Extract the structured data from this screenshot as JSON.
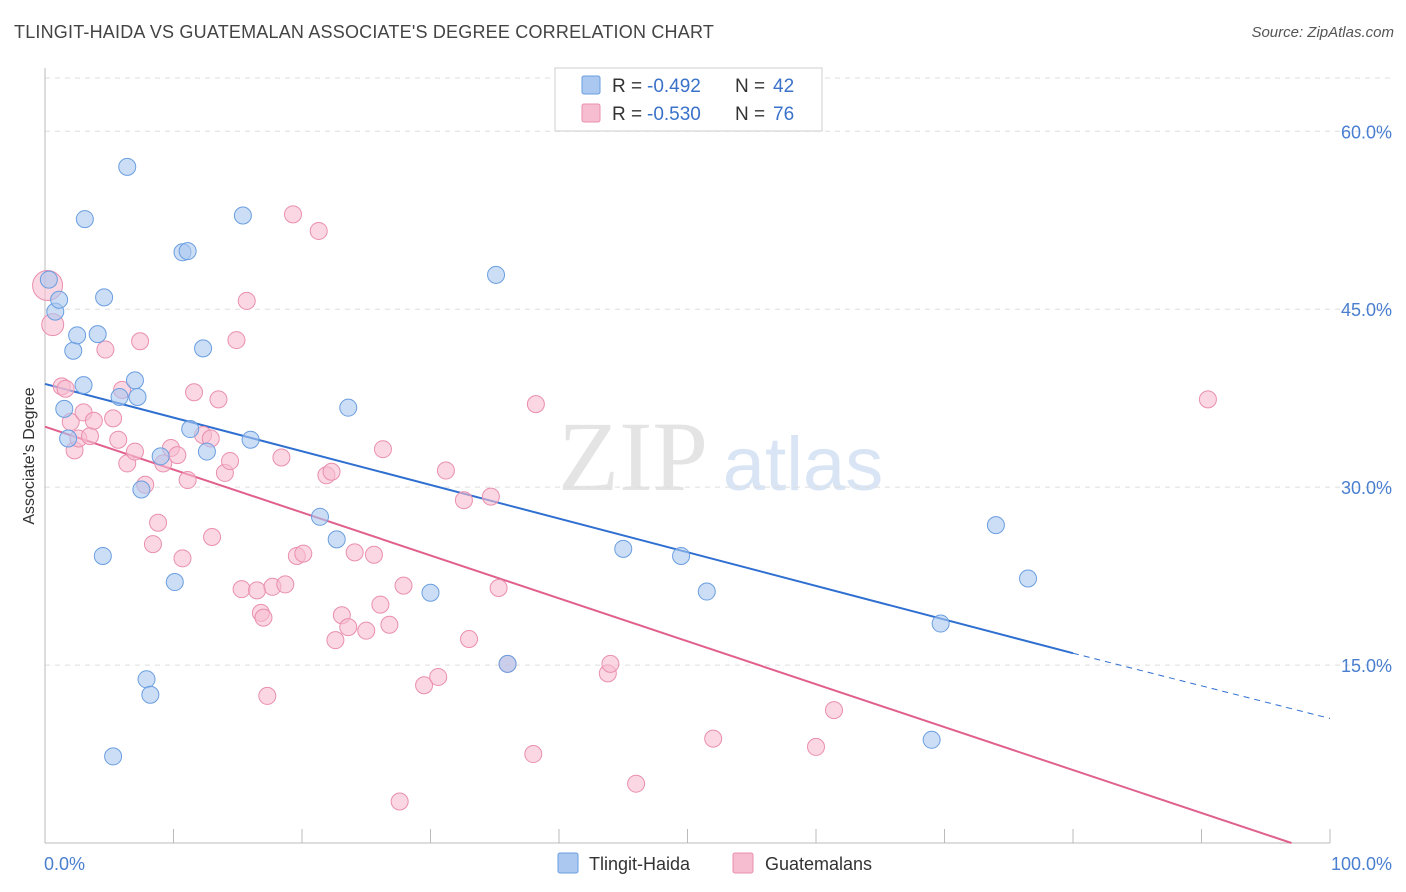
{
  "header": {
    "title": "TLINGIT-HAIDA VS GUATEMALAN ASSOCIATE'S DEGREE CORRELATION CHART",
    "source": "Source: ZipAtlas.com"
  },
  "watermark": {
    "zip": "ZIP",
    "atlas": "atlas"
  },
  "legend": {
    "r_label": "R =",
    "n_label": "N =",
    "rows": [
      {
        "r": "-0.492",
        "n": "42"
      },
      {
        "r": "-0.530",
        "n": "76"
      }
    ]
  },
  "colors": {
    "blue_fill": "#aac8f0",
    "blue_stroke": "#6a9ee0",
    "blue_line": "#2f6fd0",
    "pink_fill": "#f6bcd0",
    "pink_stroke": "#ea8fae",
    "pink_line": "#e0608e",
    "tick_text": "#4a7fd0",
    "grid": "#dddddd"
  },
  "chart_data": {
    "type": "scatter",
    "title": "TLINGIT-HAIDA VS GUATEMALAN ASSOCIATE'S DEGREE CORRELATION CHART",
    "xlabel": "",
    "ylabel": "Associate's Degree",
    "xlim": [
      0,
      100
    ],
    "ylim": [
      0,
      65
    ],
    "x_tick_labels": [
      "0.0%",
      "100.0%"
    ],
    "y_ticks": [
      15,
      30,
      45,
      60
    ],
    "y_tick_labels": [
      "15.0%",
      "30.0%",
      "45.0%",
      "60.0%"
    ],
    "grid": "horizontal dashed",
    "legend_position": "top-center",
    "series": [
      {
        "name": "Tlingit-Haida",
        "color": "#aac8f0",
        "points": [
          [
            0.3,
            47.5
          ],
          [
            0.8,
            44.8
          ],
          [
            1.1,
            45.8
          ],
          [
            2.2,
            41.5
          ],
          [
            2.5,
            42.8
          ],
          [
            3.1,
            52.6
          ],
          [
            4.1,
            42.9
          ],
          [
            4.5,
            24.2
          ],
          [
            4.6,
            46.0
          ],
          [
            5.3,
            7.3
          ],
          [
            5.8,
            37.6
          ],
          [
            6.4,
            57.0
          ],
          [
            7.0,
            39.0
          ],
          [
            7.2,
            37.6
          ],
          [
            7.5,
            29.8
          ],
          [
            7.9,
            13.8
          ],
          [
            8.2,
            12.5
          ],
          [
            9.0,
            32.6
          ],
          [
            10.1,
            22.0
          ],
          [
            10.7,
            49.8
          ],
          [
            11.1,
            49.9
          ],
          [
            11.3,
            34.9
          ],
          [
            12.3,
            41.7
          ],
          [
            12.6,
            33.0
          ],
          [
            15.4,
            52.9
          ],
          [
            16.0,
            34.0
          ],
          [
            21.4,
            27.5
          ],
          [
            22.7,
            25.6
          ],
          [
            23.6,
            36.7
          ],
          [
            30.0,
            21.1
          ],
          [
            35.1,
            47.9
          ],
          [
            36.0,
            15.1
          ],
          [
            45.0,
            24.8
          ],
          [
            49.5,
            24.2
          ],
          [
            51.5,
            21.2
          ],
          [
            69.0,
            8.7
          ],
          [
            69.7,
            18.5
          ],
          [
            74.0,
            26.8
          ],
          [
            76.5,
            22.3
          ],
          [
            1.5,
            36.6
          ],
          [
            3.0,
            38.6
          ],
          [
            1.8,
            34.1
          ]
        ],
        "trend": {
          "x": [
            0,
            80
          ],
          "y": [
            38.7,
            16.0
          ],
          "dashed_to": [
            100,
            10.5
          ]
        }
      },
      {
        "name": "Guatemalans",
        "color": "#f6bcd0",
        "points": [
          [
            0.2,
            47.0
          ],
          [
            0.6,
            43.7
          ],
          [
            1.3,
            38.5
          ],
          [
            1.6,
            38.3
          ],
          [
            2.0,
            35.5
          ],
          [
            2.3,
            33.1
          ],
          [
            2.6,
            34.1
          ],
          [
            3.0,
            36.3
          ],
          [
            3.5,
            34.3
          ],
          [
            3.8,
            35.6
          ],
          [
            4.7,
            41.6
          ],
          [
            5.3,
            35.8
          ],
          [
            5.7,
            34.0
          ],
          [
            6.0,
            38.2
          ],
          [
            6.4,
            32.0
          ],
          [
            7.0,
            33.0
          ],
          [
            7.4,
            42.3
          ],
          [
            7.8,
            30.2
          ],
          [
            8.4,
            25.2
          ],
          [
            8.8,
            27.0
          ],
          [
            9.2,
            32.0
          ],
          [
            9.8,
            33.3
          ],
          [
            10.3,
            32.7
          ],
          [
            10.7,
            24.0
          ],
          [
            11.1,
            30.6
          ],
          [
            11.6,
            38.0
          ],
          [
            12.3,
            34.4
          ],
          [
            12.9,
            34.1
          ],
          [
            13.0,
            25.8
          ],
          [
            13.5,
            37.4
          ],
          [
            14.0,
            31.2
          ],
          [
            14.4,
            32.2
          ],
          [
            14.9,
            42.4
          ],
          [
            15.3,
            21.4
          ],
          [
            15.7,
            45.7
          ],
          [
            16.5,
            21.3
          ],
          [
            16.8,
            19.4
          ],
          [
            17.0,
            19.0
          ],
          [
            17.3,
            12.4
          ],
          [
            17.7,
            21.6
          ],
          [
            18.4,
            32.5
          ],
          [
            18.7,
            21.8
          ],
          [
            19.3,
            53.0
          ],
          [
            19.6,
            24.2
          ],
          [
            20.1,
            24.4
          ],
          [
            21.3,
            51.6
          ],
          [
            21.9,
            31.0
          ],
          [
            22.3,
            31.3
          ],
          [
            22.6,
            17.1
          ],
          [
            23.1,
            19.2
          ],
          [
            23.6,
            18.2
          ],
          [
            24.1,
            24.5
          ],
          [
            25.0,
            17.9
          ],
          [
            25.6,
            24.3
          ],
          [
            26.1,
            20.1
          ],
          [
            26.3,
            33.2
          ],
          [
            26.8,
            18.4
          ],
          [
            27.6,
            3.5
          ],
          [
            27.9,
            21.7
          ],
          [
            29.5,
            13.3
          ],
          [
            30.6,
            14.0
          ],
          [
            31.2,
            31.4
          ],
          [
            32.6,
            28.9
          ],
          [
            33.0,
            17.2
          ],
          [
            34.7,
            29.2
          ],
          [
            35.3,
            21.5
          ],
          [
            38.0,
            7.5
          ],
          [
            38.2,
            37.0
          ],
          [
            43.8,
            14.3
          ],
          [
            44.0,
            15.1
          ],
          [
            46.0,
            5.0
          ],
          [
            52.0,
            8.8
          ],
          [
            60.0,
            8.1
          ],
          [
            61.4,
            11.2
          ],
          [
            90.5,
            37.4
          ],
          [
            36.0,
            15.1
          ]
        ],
        "trend": {
          "x": [
            0,
            97
          ],
          "y": [
            35.1,
            0.0
          ]
        }
      }
    ]
  },
  "bottom_legend": [
    {
      "label": "Tlingit-Haida"
    },
    {
      "label": "Guatemalans"
    }
  ]
}
